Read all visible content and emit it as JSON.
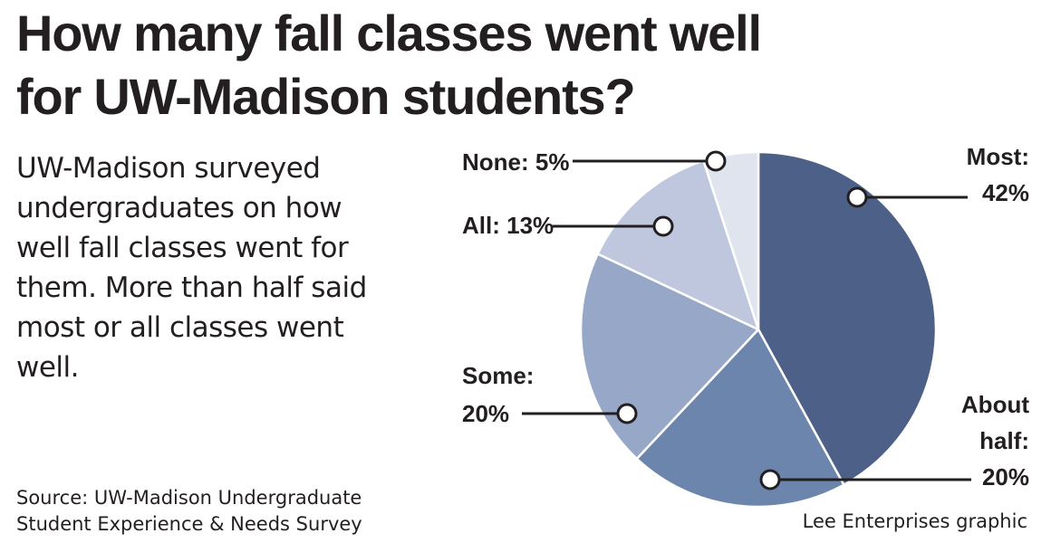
{
  "title_lines": [
    "How many fall classes went well",
    "for UW-Madison students?"
  ],
  "description": "UW-Madison surveyed undergraduates on how well fall classes went for them. More than half said most or all classes went well.",
  "source_lines": [
    "Source: UW-Madison Undergraduate",
    "Student Experience & Needs Survey"
  ],
  "credit": "Lee Enterprises graphic",
  "colors": {
    "most": "#4d6188",
    "about_half": "#6b85ad",
    "some": "#97a7c8",
    "all": "#bfc7df",
    "none": "#e0e4ef",
    "leader": "#231f20"
  },
  "chart_data": {
    "type": "pie",
    "title": "How many fall classes went well for UW-Madison students?",
    "slices": [
      {
        "key": "most",
        "label": "Most",
        "value": 42,
        "label_lines": [
          "Most:",
          "42%"
        ]
      },
      {
        "key": "about_half",
        "label": "About half",
        "value": 20,
        "label_lines": [
          "About",
          "half:",
          "20%"
        ]
      },
      {
        "key": "some",
        "label": "Some",
        "value": 20,
        "label_lines": [
          "Some:",
          "20%"
        ]
      },
      {
        "key": "all",
        "label": "All",
        "value": 13,
        "label_lines": [
          "All: 13%"
        ]
      },
      {
        "key": "none",
        "label": "None",
        "value": 5,
        "label_lines": [
          "None: 5%"
        ]
      }
    ]
  }
}
